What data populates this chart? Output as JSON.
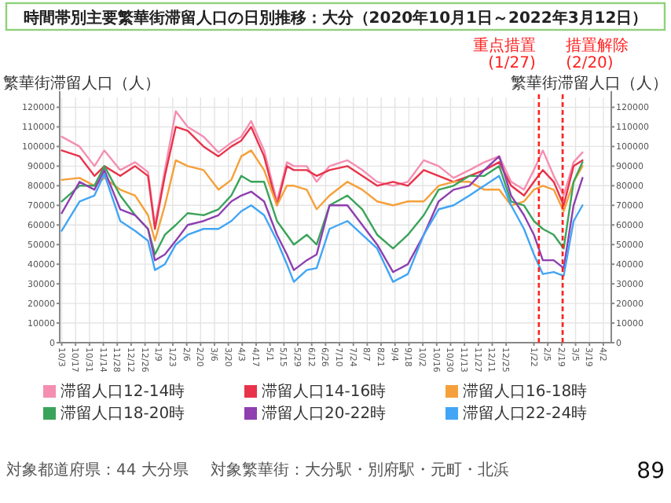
{
  "chart_data": {
    "type": "line",
    "title": "時間帯別主要繁華街滞留人口の日別推移：大分（2020年10月1日～2022年3月12日）",
    "ylabel": "繁華街滞留人口（人）",
    "y2label": "繁華街滞留人口（人）",
    "x": [
      "2020-10-03",
      "2020-10-21",
      "2020-11-05",
      "2020-11-15",
      "2020-12-01",
      "2020-12-16",
      "2020-12-29",
      "2021-01-05",
      "2021-01-15",
      "2021-01-26",
      "2021-02-07",
      "2021-02-23",
      "2021-03-10",
      "2021-03-23",
      "2021-04-02",
      "2021-04-12",
      "2021-04-25",
      "2021-05-08",
      "2021-05-18",
      "2021-05-25",
      "2021-06-07",
      "2021-06-17",
      "2021-06-30",
      "2021-07-18",
      "2021-08-02",
      "2021-08-17",
      "2021-09-02",
      "2021-09-17",
      "2021-10-03",
      "2021-10-18",
      "2021-11-02",
      "2021-11-18",
      "2021-12-03",
      "2021-12-18",
      "2021-12-30",
      "2022-01-12",
      "2022-01-22",
      "2022-01-31",
      "2022-02-11",
      "2022-02-21",
      "2022-03-03",
      "2022-03-12"
    ],
    "series": [
      {
        "name": "滞留人口12-14時",
        "color": "#f48fb1",
        "values": [
          105000,
          100000,
          90000,
          98000,
          88000,
          92000,
          87000,
          60000,
          88000,
          118000,
          110000,
          105000,
          97000,
          102000,
          105000,
          113000,
          98000,
          72000,
          92000,
          90000,
          90000,
          82000,
          90000,
          93000,
          88000,
          82000,
          80000,
          82000,
          93000,
          90000,
          84000,
          88000,
          92000,
          95000,
          82000,
          78000,
          88000,
          98000,
          85000,
          75000,
          92000,
          97000
        ]
      },
      {
        "name": "滞留人口14-16時",
        "color": "#e8334a",
        "values": [
          98000,
          95000,
          85000,
          90000,
          85000,
          90000,
          85000,
          58000,
          85000,
          110000,
          108000,
          100000,
          95000,
          100000,
          103000,
          110000,
          95000,
          70000,
          90000,
          88000,
          88000,
          85000,
          88000,
          90000,
          85000,
          80000,
          82000,
          80000,
          88000,
          85000,
          82000,
          85000,
          88000,
          92000,
          80000,
          75000,
          82000,
          88000,
          82000,
          70000,
          90000,
          93000
        ]
      },
      {
        "name": "滞留人口16-18時",
        "color": "#f5a03a",
        "values": [
          83000,
          84000,
          80000,
          84000,
          78000,
          75000,
          65000,
          52000,
          70000,
          93000,
          90000,
          88000,
          78000,
          83000,
          95000,
          98000,
          88000,
          70000,
          80000,
          80000,
          78000,
          68000,
          75000,
          82000,
          78000,
          72000,
          70000,
          72000,
          72000,
          80000,
          82000,
          82000,
          78000,
          78000,
          70000,
          72000,
          78000,
          80000,
          78000,
          67000,
          82000,
          90000
        ]
      },
      {
        "name": "滞留人口18-20時",
        "color": "#3aa35a",
        "values": [
          72000,
          80000,
          80000,
          90000,
          75000,
          65000,
          58000,
          45000,
          55000,
          60000,
          66000,
          65000,
          68000,
          75000,
          85000,
          82000,
          82000,
          62000,
          55000,
          50000,
          55000,
          50000,
          70000,
          75000,
          68000,
          55000,
          48000,
          55000,
          65000,
          78000,
          80000,
          85000,
          85000,
          90000,
          72000,
          70000,
          62000,
          58000,
          55000,
          48000,
          82000,
          92000
        ]
      },
      {
        "name": "滞留人口20-22時",
        "color": "#8e3fb0",
        "values": [
          66000,
          82000,
          78000,
          88000,
          68000,
          65000,
          58000,
          42000,
          45000,
          52000,
          60000,
          62000,
          65000,
          72000,
          75000,
          77000,
          72000,
          55000,
          45000,
          37000,
          42000,
          45000,
          70000,
          70000,
          60000,
          50000,
          36000,
          40000,
          55000,
          72000,
          78000,
          80000,
          88000,
          95000,
          75000,
          65000,
          55000,
          42000,
          42000,
          38000,
          70000,
          84000
        ]
      },
      {
        "name": "滞留人口22-24時",
        "color": "#42a5f5",
        "values": [
          57000,
          72000,
          75000,
          86000,
          62000,
          57000,
          52000,
          37000,
          40000,
          50000,
          55000,
          58000,
          58000,
          62000,
          67000,
          70000,
          65000,
          52000,
          40000,
          31000,
          37000,
          38000,
          58000,
          62000,
          55000,
          48000,
          31000,
          35000,
          55000,
          68000,
          70000,
          75000,
          80000,
          85000,
          70000,
          58000,
          45000,
          35000,
          36000,
          34000,
          62000,
          70000
        ]
      }
    ],
    "xlim": [
      "2020-10-01",
      "2022-04-10"
    ],
    "xticks": [
      {
        "value": "2020-10-03",
        "label": "10/3"
      },
      {
        "value": "2020-10-17",
        "label": "10/17"
      },
      {
        "value": "2020-10-31",
        "label": "10/31"
      },
      {
        "value": "2020-11-14",
        "label": "11/14"
      },
      {
        "value": "2020-11-28",
        "label": "11/28"
      },
      {
        "value": "2020-12-12",
        "label": "12/12"
      },
      {
        "value": "2020-12-26",
        "label": "12/26"
      },
      {
        "value": "2021-01-09",
        "label": "1/9"
      },
      {
        "value": "2021-01-23",
        "label": "1/23"
      },
      {
        "value": "2021-02-06",
        "label": "2/6"
      },
      {
        "value": "2021-02-20",
        "label": "2/20"
      },
      {
        "value": "2021-03-06",
        "label": "3/6"
      },
      {
        "value": "2021-03-20",
        "label": "3/20"
      },
      {
        "value": "2021-04-03",
        "label": "4/3"
      },
      {
        "value": "2021-04-17",
        "label": "4/17"
      },
      {
        "value": "2021-05-01",
        "label": "5/1"
      },
      {
        "value": "2021-05-15",
        "label": "5/15"
      },
      {
        "value": "2021-05-29",
        "label": "5/29"
      },
      {
        "value": "2021-06-12",
        "label": "6/12"
      },
      {
        "value": "2021-06-26",
        "label": "6/26"
      },
      {
        "value": "2021-07-10",
        "label": "7/10"
      },
      {
        "value": "2021-07-24",
        "label": "7/24"
      },
      {
        "value": "2021-08-07",
        "label": "8/7"
      },
      {
        "value": "2021-08-21",
        "label": "8/21"
      },
      {
        "value": "2021-09-04",
        "label": "9/4"
      },
      {
        "value": "2021-09-18",
        "label": "9/18"
      },
      {
        "value": "2021-10-02",
        "label": "10/2"
      },
      {
        "value": "2021-10-16",
        "label": "10/16"
      },
      {
        "value": "2021-10-30",
        "label": "10/30"
      },
      {
        "value": "2021-11-13",
        "label": "11/13"
      },
      {
        "value": "2021-11-27",
        "label": "11/27"
      },
      {
        "value": "2021-12-11",
        "label": "12/11"
      },
      {
        "value": "2021-12-25",
        "label": "12/25"
      },
      {
        "value": "2022-01-22",
        "label": "1/22"
      },
      {
        "value": "2022-02-05",
        "label": "2/5"
      },
      {
        "value": "2022-02-19",
        "label": "2/19"
      },
      {
        "value": "2022-03-05",
        "label": "3/5"
      },
      {
        "value": "2022-03-19",
        "label": "3/19"
      },
      {
        "value": "2022-04-02",
        "label": "4/2"
      }
    ],
    "ylim": [
      0,
      125000
    ],
    "yticks": [
      0,
      10000,
      20000,
      30000,
      40000,
      50000,
      60000,
      70000,
      80000,
      90000,
      100000,
      110000,
      120000
    ],
    "y2lim": [
      0,
      125000
    ],
    "y2ticks": [
      0,
      10000,
      20000,
      30000,
      40000,
      50000,
      60000,
      70000,
      80000,
      90000,
      100000,
      110000,
      120000
    ],
    "ref_lines": [
      {
        "axis": "x",
        "value": "2022-01-27",
        "label": "重点措置\n(1/27)",
        "color": "#ff2020",
        "line_style": "dashed"
      },
      {
        "axis": "x",
        "value": "2022-02-20",
        "label": "措置解除\n(2/20)",
        "color": "#ff2020",
        "line_style": "dashed"
      }
    ],
    "grid": true,
    "legend": "bottom",
    "annotations": [
      "対象都道府県：44 大分県",
      "対象繁華街：大分駅・別府駅・元町・北浜",
      "89"
    ]
  }
}
